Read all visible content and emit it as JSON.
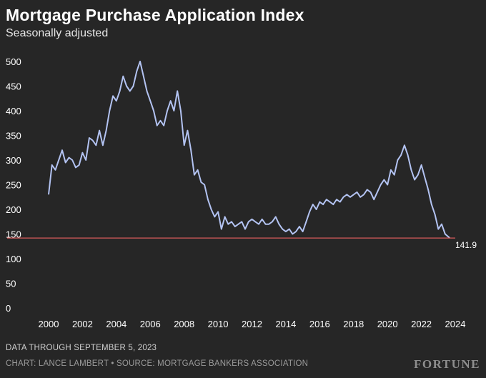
{
  "header": {
    "title": "Mortgage Purchase Application Index",
    "subtitle": "Seasonally adjusted"
  },
  "footer": {
    "note": "DATA THROUGH SEPTEMBER 5, 2023",
    "credit": "CHART: LANCE LAMBERT • SOURCE: MORTGAGE BANKERS ASSOCIATION",
    "brand": "FORTUNE"
  },
  "colors": {
    "background": "#262626",
    "line": "#b3c3f2",
    "reference_line": "#d65a5a",
    "text": "#ffffff",
    "muted_text": "#9a9a9a"
  },
  "chart_data": {
    "type": "line",
    "title": "Mortgage Purchase Application Index",
    "subtitle": "Seasonally adjusted",
    "xlabel": "",
    "ylabel": "",
    "xlim": [
      2000,
      2024
    ],
    "ylim": [
      0,
      500
    ],
    "x_ticks": [
      2000,
      2002,
      2004,
      2006,
      2008,
      2010,
      2012,
      2014,
      2016,
      2018,
      2020,
      2022,
      2024
    ],
    "y_ticks": [
      0,
      50,
      100,
      150,
      200,
      250,
      300,
      350,
      400,
      450,
      500
    ],
    "grid": false,
    "reference_line": {
      "value": 141.9,
      "label": "141.9"
    },
    "series": [
      {
        "name": "",
        "x": [
          2000.0,
          2000.2,
          2000.4,
          2000.6,
          2000.8,
          2001.0,
          2001.2,
          2001.4,
          2001.6,
          2001.8,
          2002.0,
          2002.2,
          2002.4,
          2002.6,
          2002.8,
          2003.0,
          2003.2,
          2003.4,
          2003.6,
          2003.8,
          2004.0,
          2004.2,
          2004.4,
          2004.6,
          2004.8,
          2005.0,
          2005.2,
          2005.4,
          2005.6,
          2005.8,
          2006.0,
          2006.2,
          2006.4,
          2006.6,
          2006.8,
          2007.0,
          2007.2,
          2007.4,
          2007.6,
          2007.8,
          2008.0,
          2008.2,
          2008.4,
          2008.6,
          2008.8,
          2009.0,
          2009.2,
          2009.4,
          2009.6,
          2009.8,
          2010.0,
          2010.2,
          2010.4,
          2010.6,
          2010.8,
          2011.0,
          2011.2,
          2011.4,
          2011.6,
          2011.8,
          2012.0,
          2012.2,
          2012.4,
          2012.6,
          2012.8,
          2013.0,
          2013.2,
          2013.4,
          2013.6,
          2013.8,
          2014.0,
          2014.2,
          2014.4,
          2014.6,
          2014.8,
          2015.0,
          2015.2,
          2015.4,
          2015.6,
          2015.8,
          2016.0,
          2016.2,
          2016.4,
          2016.6,
          2016.8,
          2017.0,
          2017.2,
          2017.4,
          2017.6,
          2017.8,
          2018.0,
          2018.2,
          2018.4,
          2018.6,
          2018.8,
          2019.0,
          2019.2,
          2019.4,
          2019.6,
          2019.8,
          2020.0,
          2020.2,
          2020.4,
          2020.6,
          2020.8,
          2021.0,
          2021.2,
          2021.4,
          2021.6,
          2021.8,
          2022.0,
          2022.2,
          2022.4,
          2022.6,
          2022.8,
          2023.0,
          2023.2,
          2023.4,
          2023.68
        ],
        "y": [
          230,
          290,
          280,
          300,
          320,
          295,
          305,
          300,
          285,
          290,
          315,
          300,
          345,
          340,
          330,
          360,
          330,
          360,
          400,
          430,
          420,
          440,
          470,
          450,
          440,
          450,
          480,
          500,
          470,
          440,
          420,
          400,
          370,
          380,
          370,
          400,
          420,
          400,
          440,
          400,
          330,
          360,
          320,
          270,
          280,
          255,
          250,
          220,
          200,
          185,
          195,
          160,
          185,
          170,
          175,
          165,
          170,
          175,
          160,
          175,
          180,
          175,
          170,
          180,
          170,
          170,
          175,
          185,
          170,
          160,
          155,
          160,
          150,
          155,
          165,
          155,
          175,
          195,
          210,
          200,
          215,
          210,
          220,
          215,
          210,
          220,
          215,
          225,
          230,
          225,
          230,
          235,
          225,
          230,
          240,
          235,
          220,
          235,
          250,
          260,
          250,
          280,
          270,
          300,
          310,
          330,
          310,
          280,
          260,
          270,
          290,
          265,
          240,
          210,
          190,
          160,
          170,
          150,
          141.9
        ]
      }
    ]
  }
}
